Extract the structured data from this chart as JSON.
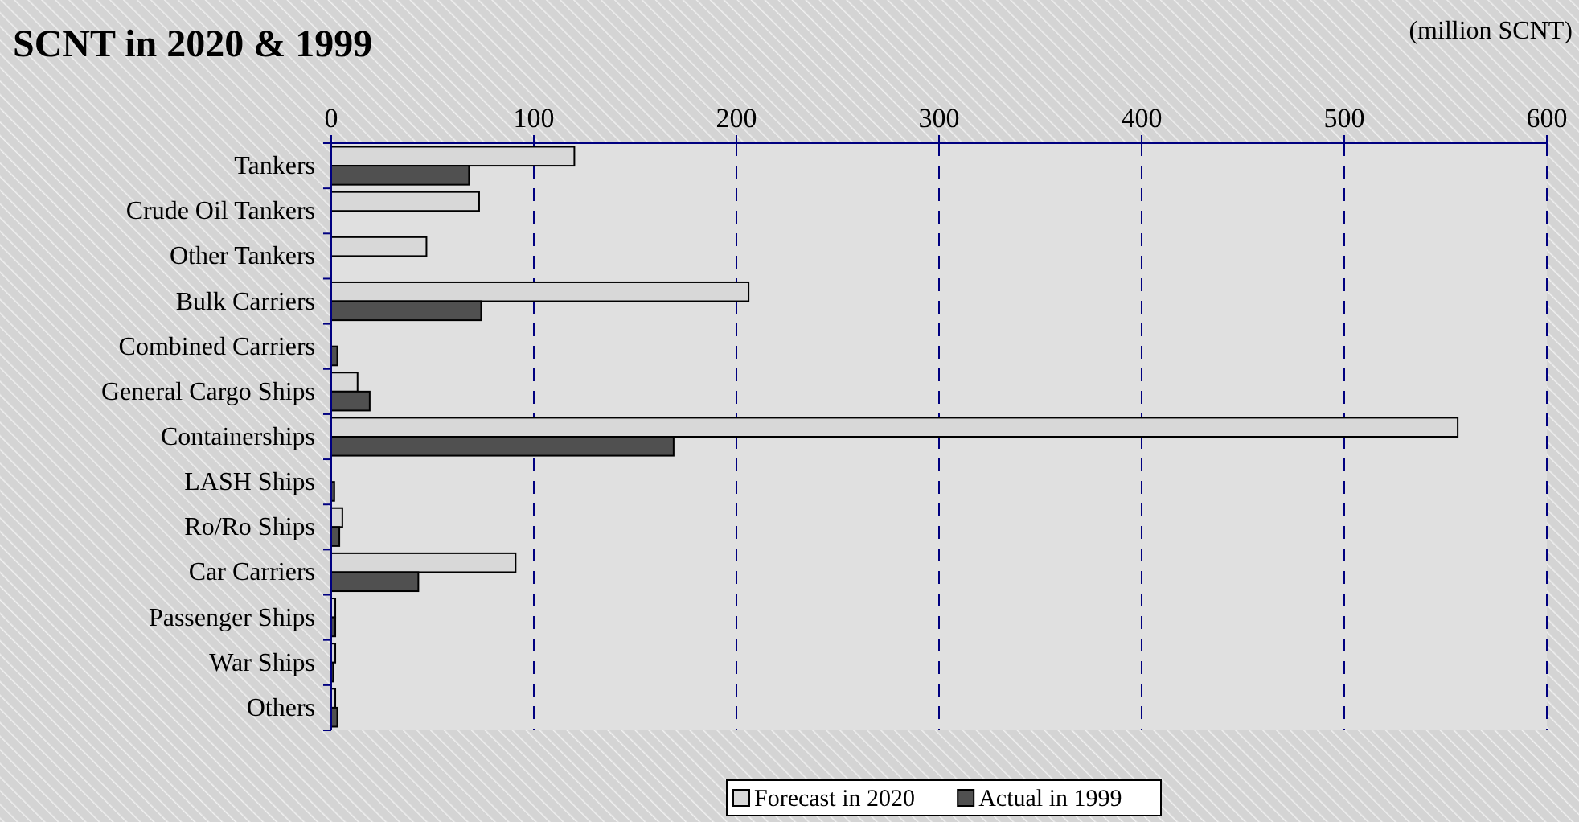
{
  "chart_data": {
    "type": "bar",
    "orientation": "horizontal",
    "title": "SCNT in 2020 & 1999",
    "annotations": [
      "(million SCNT)"
    ],
    "categories": [
      "Tankers",
      "Crude Oil Tankers",
      "Other Tankers",
      "Bulk Carriers",
      "Combined Carriers",
      "General Cargo Ships",
      "Containerships",
      "LASH Ships",
      "Ro/Ro Ships",
      "Car Carriers",
      "Passenger Ships",
      "War Ships",
      "Others"
    ],
    "series": [
      {
        "name": "Forecast in 2020",
        "color": "#d8d8d8",
        "values": [
          120,
          73,
          47,
          206,
          null,
          13,
          556,
          null,
          5.5,
          91,
          2,
          2,
          2
        ]
      },
      {
        "name": "Actual in 1999",
        "color": "#505050",
        "values": [
          68,
          null,
          null,
          74,
          3,
          19,
          169,
          1.5,
          4,
          43,
          2,
          1,
          3
        ]
      }
    ],
    "xlim": [
      0,
      600
    ],
    "xticks": [
      0,
      100,
      200,
      300,
      400,
      500,
      600
    ],
    "grid": "x",
    "legend": "bottom"
  }
}
